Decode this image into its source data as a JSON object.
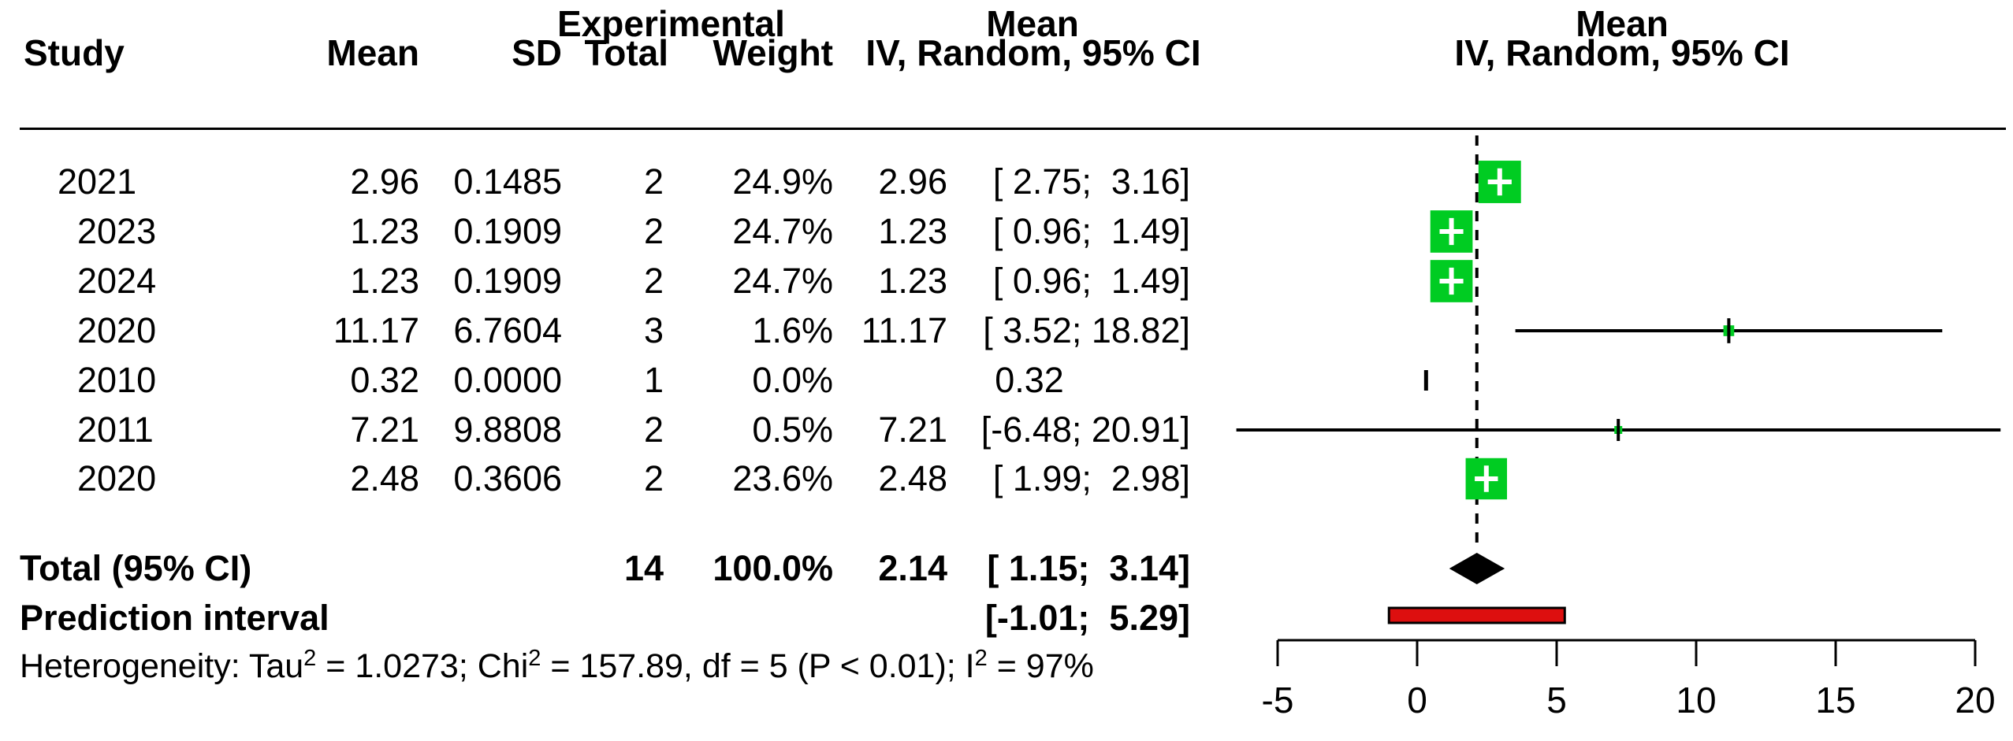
{
  "header": {
    "study": "Study",
    "group_experimental": "Experimental",
    "mean": "Mean",
    "sd": "SD",
    "total": "Total",
    "weight": "Weight",
    "effect_top": "Mean",
    "effect_label": "IV, Random, 95% CI",
    "plot_top": "Mean",
    "plot_label": "IV, Random, 95% CI"
  },
  "rows": [
    {
      "study": "2021",
      "mean": "2.96",
      "sd": "0.1485",
      "total": "2",
      "weight": "24.9%",
      "effect_mean": "2.96",
      "effect_ci": "[ 2.75;  3.16]"
    },
    {
      "study": "  2023",
      "mean": "1.23",
      "sd": "0.1909",
      "total": "2",
      "weight": "24.7%",
      "effect_mean": "1.23",
      "effect_ci": "[ 0.96;  1.49]"
    },
    {
      "study": "  2024",
      "mean": "1.23",
      "sd": "0.1909",
      "total": "2",
      "weight": "24.7%",
      "effect_mean": "1.23",
      "effect_ci": "[ 0.96;  1.49]"
    },
    {
      "study": "  2020",
      "mean": "11.17",
      "sd": "6.7604",
      "total": "3",
      "weight": "1.6%",
      "effect_mean": "11.17",
      "effect_ci": "[ 3.52; 18.82]"
    },
    {
      "study": "  2010",
      "mean": "0.32",
      "sd": "0.0000",
      "total": "1",
      "weight": "0.0%",
      "effect_mean": "0.32",
      "effect_ci": ""
    },
    {
      "study": "  2011",
      "mean": "7.21",
      "sd": "9.8808",
      "total": "2",
      "weight": "0.5%",
      "effect_mean": "7.21",
      "effect_ci": "[-6.48; 20.91]"
    },
    {
      "study": "  2020",
      "mean": "2.48",
      "sd": "0.3606",
      "total": "2",
      "weight": "23.6%",
      "effect_mean": "2.48",
      "effect_ci": "[ 1.99;  2.98]"
    }
  ],
  "total_row": {
    "label": "Total (95% CI)",
    "total": "14",
    "weight": "100.0%",
    "effect_mean": "2.14",
    "effect_ci": "[ 1.15;  3.14]"
  },
  "prediction_row": {
    "label": "Prediction interval",
    "effect_ci": "[-1.01;  5.29]"
  },
  "heterogeneity": {
    "parts": [
      {
        "t": "Heterogeneity: Tau"
      },
      {
        "s": "2"
      },
      {
        "t": " = 1.0273; Chi"
      },
      {
        "s": "2"
      },
      {
        "t": " = 157.89, df = 5 (P < 0.01); I"
      },
      {
        "s": "2"
      },
      {
        "t": " = 97%"
      }
    ]
  },
  "chart_data": {
    "type": "forest",
    "title": "",
    "xlabel": "",
    "axis": {
      "min": -5,
      "max": 20,
      "ticks": [
        -5,
        0,
        5,
        10,
        15,
        20
      ]
    },
    "studies": [
      {
        "label": "2021",
        "mean": 2.96,
        "sd": 0.1485,
        "total": 2,
        "weight_pct": 24.9,
        "ci": [
          2.75,
          3.16
        ]
      },
      {
        "label": "2023",
        "mean": 1.23,
        "sd": 0.1909,
        "total": 2,
        "weight_pct": 24.7,
        "ci": [
          0.96,
          1.49
        ]
      },
      {
        "label": "2024",
        "mean": 1.23,
        "sd": 0.1909,
        "total": 2,
        "weight_pct": 24.7,
        "ci": [
          0.96,
          1.49
        ]
      },
      {
        "label": "2020",
        "mean": 11.17,
        "sd": 6.7604,
        "total": 3,
        "weight_pct": 1.6,
        "ci": [
          3.52,
          18.82
        ]
      },
      {
        "label": "2010",
        "mean": 0.32,
        "sd": 0.0,
        "total": 1,
        "weight_pct": 0.0,
        "ci": null
      },
      {
        "label": "2011",
        "mean": 7.21,
        "sd": 9.8808,
        "total": 2,
        "weight_pct": 0.5,
        "ci": [
          -6.48,
          20.91
        ]
      },
      {
        "label": "2020",
        "mean": 2.48,
        "sd": 0.3606,
        "total": 2,
        "weight_pct": 23.6,
        "ci": [
          1.99,
          2.98
        ]
      }
    ],
    "total": {
      "mean": 2.14,
      "ci": [
        1.15,
        3.14
      ],
      "total": 14,
      "weight_pct": 100.0
    },
    "prediction": {
      "ci": [
        -1.01,
        5.29
      ]
    },
    "heterogeneity": {
      "tau2": 1.0273,
      "chi2": 157.89,
      "df": 5,
      "p": "< 0.01",
      "i2": "97%"
    },
    "model": "IV, Random",
    "colors": {
      "square": "#00CC22",
      "square_cross": "#FFFFFF",
      "prediction_fill": "#DD0F0F",
      "diamond": "#000000",
      "line": "#000000"
    }
  }
}
